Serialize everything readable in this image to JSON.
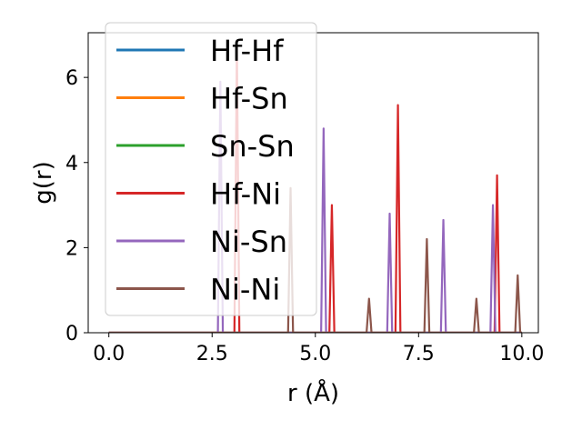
{
  "chart_data": {
    "type": "line",
    "title": "",
    "xlabel": "r (Å)",
    "ylabel": "g(r)",
    "xlim": [
      -0.5,
      10.4
    ],
    "ylim": [
      0,
      7.05
    ],
    "x_ticks": [
      0.0,
      2.5,
      5.0,
      7.5,
      10.0
    ],
    "x_tick_labels": [
      "0.0",
      "2.5",
      "5.0",
      "7.5",
      "10.0"
    ],
    "y_ticks": [
      0,
      2,
      4,
      6
    ],
    "y_tick_labels": [
      "0",
      "2",
      "4",
      "6"
    ],
    "grid": false,
    "legend_position": "top-left",
    "series": [
      {
        "name": "Hf-Hf",
        "color": "#1f77b4",
        "peaks": []
      },
      {
        "name": "Hf-Sn",
        "color": "#ff7f0e",
        "peaks": []
      },
      {
        "name": "Sn-Sn",
        "color": "#2ca02c",
        "peaks": []
      },
      {
        "name": "Hf-Ni",
        "color": "#d62728",
        "peaks": [
          {
            "x": 3.1,
            "y": 6.7
          },
          {
            "x": 5.4,
            "y": 3.0
          },
          {
            "x": 7.0,
            "y": 5.35
          },
          {
            "x": 9.4,
            "y": 3.7
          }
        ]
      },
      {
        "name": "Ni-Sn",
        "color": "#9467bd",
        "peaks": [
          {
            "x": 2.7,
            "y": 5.9
          },
          {
            "x": 5.2,
            "y": 4.8
          },
          {
            "x": 6.8,
            "y": 2.8
          },
          {
            "x": 8.1,
            "y": 2.65
          },
          {
            "x": 9.3,
            "y": 3.0
          }
        ]
      },
      {
        "name": "Ni-Ni",
        "color": "#8c564b",
        "peaks": [
          {
            "x": 4.4,
            "y": 3.4
          },
          {
            "x": 6.3,
            "y": 0.8
          },
          {
            "x": 7.7,
            "y": 2.2
          },
          {
            "x": 8.9,
            "y": 0.8
          },
          {
            "x": 9.9,
            "y": 1.35
          }
        ]
      }
    ]
  }
}
